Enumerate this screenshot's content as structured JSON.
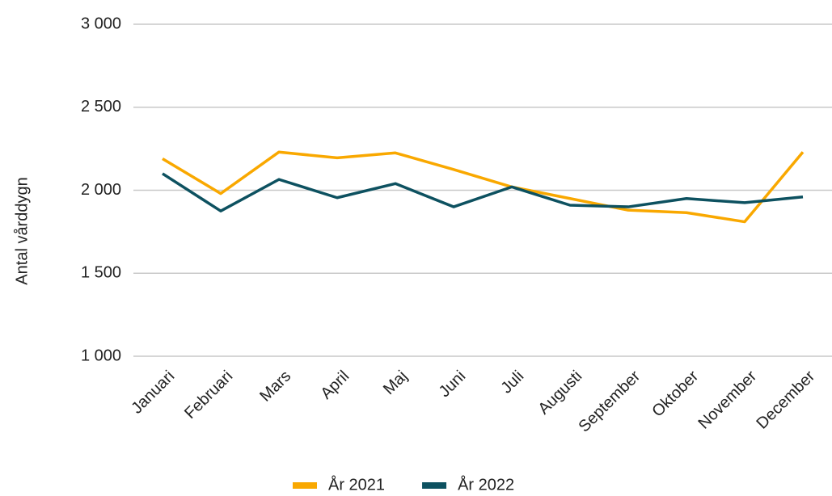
{
  "chart_data": {
    "type": "line",
    "y_label": "Antal vårddygn",
    "categories": [
      "Januari",
      "Februari",
      "Mars",
      "April",
      "Maj",
      "Juni",
      "Juli",
      "Augusti",
      "September",
      "Oktober",
      "November",
      "December"
    ],
    "series": [
      {
        "name": "År 2021",
        "color": "#f9a800",
        "values": [
          2190,
          1980,
          2230,
          2195,
          2225,
          2125,
          2020,
          1950,
          1880,
          1865,
          1810,
          2230
        ]
      },
      {
        "name": "År 2022",
        "color": "#0d5160",
        "values": [
          2100,
          1875,
          2065,
          1955,
          2040,
          1900,
          2020,
          1910,
          1900,
          1950,
          1925,
          1960
        ]
      }
    ],
    "ylim": [
      1000,
      3000
    ],
    "yticks": [
      {
        "value": 1000,
        "label": "1 000"
      },
      {
        "value": 1500,
        "label": "1 500"
      },
      {
        "value": 2000,
        "label": "2 000"
      },
      {
        "value": 2500,
        "label": "2 500"
      },
      {
        "value": 3000,
        "label": "3 000"
      }
    ],
    "grid": true,
    "legend": "bottom"
  }
}
